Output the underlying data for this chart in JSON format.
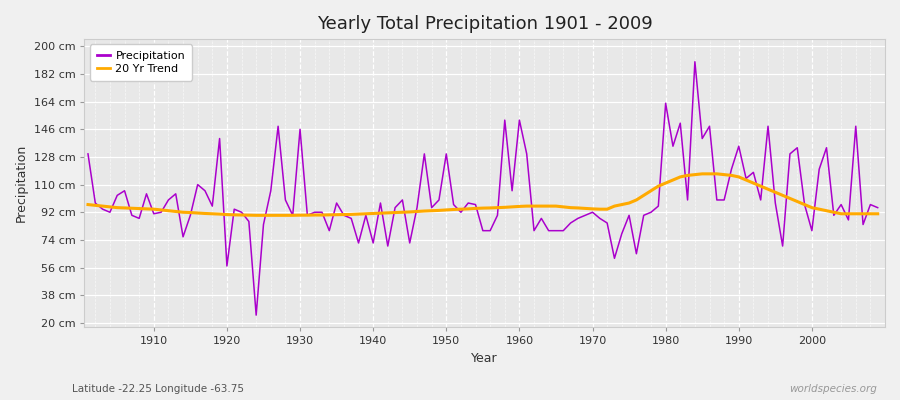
{
  "title": "Yearly Total Precipitation 1901 - 2009",
  "xlabel": "Year",
  "ylabel": "Precipitation",
  "subtitle": "Latitude -22.25 Longitude -63.75",
  "watermark": "worldspecies.org",
  "years": [
    1901,
    1902,
    1903,
    1904,
    1905,
    1906,
    1907,
    1908,
    1909,
    1910,
    1911,
    1912,
    1913,
    1914,
    1915,
    1916,
    1917,
    1918,
    1919,
    1920,
    1921,
    1922,
    1923,
    1924,
    1925,
    1926,
    1927,
    1928,
    1929,
    1930,
    1931,
    1932,
    1933,
    1934,
    1935,
    1936,
    1937,
    1938,
    1939,
    1940,
    1941,
    1942,
    1943,
    1944,
    1945,
    1946,
    1947,
    1948,
    1949,
    1950,
    1951,
    1952,
    1953,
    1954,
    1955,
    1956,
    1957,
    1958,
    1959,
    1960,
    1961,
    1962,
    1963,
    1964,
    1965,
    1966,
    1967,
    1968,
    1969,
    1970,
    1971,
    1972,
    1973,
    1974,
    1975,
    1976,
    1977,
    1978,
    1979,
    1980,
    1981,
    1982,
    1983,
    1984,
    1985,
    1986,
    1987,
    1988,
    1989,
    1990,
    1991,
    1992,
    1993,
    1994,
    1995,
    1996,
    1997,
    1998,
    1999,
    2000,
    2001,
    2002,
    2003,
    2004,
    2005,
    2006,
    2007,
    2008,
    2009
  ],
  "precipitation": [
    130,
    98,
    94,
    92,
    103,
    106,
    90,
    88,
    104,
    91,
    92,
    100,
    104,
    76,
    90,
    110,
    106,
    96,
    140,
    57,
    94,
    92,
    86,
    25,
    84,
    106,
    148,
    100,
    90,
    146,
    90,
    92,
    92,
    80,
    98,
    90,
    88,
    72,
    90,
    72,
    98,
    70,
    95,
    100,
    72,
    95,
    130,
    95,
    100,
    130,
    97,
    92,
    98,
    97,
    80,
    80,
    90,
    152,
    106,
    152,
    130,
    80,
    88,
    80,
    80,
    80,
    85,
    88,
    90,
    92,
    88,
    85,
    62,
    78,
    90,
    65,
    90,
    92,
    96,
    163,
    135,
    150,
    100,
    190,
    140,
    148,
    100,
    100,
    120,
    135,
    114,
    118,
    100,
    148,
    98,
    70,
    130,
    134,
    97,
    80,
    120,
    134,
    90,
    97,
    87,
    148,
    84,
    97,
    95
  ],
  "trend": [
    97,
    96.5,
    96,
    95.5,
    95,
    94.8,
    94.6,
    94.4,
    94.2,
    94,
    93.5,
    93,
    92.5,
    92,
    91.8,
    91.5,
    91.2,
    91,
    90.8,
    90.5,
    90.3,
    90.2,
    90.1,
    90,
    90,
    90,
    90,
    90,
    90,
    90.1,
    90.1,
    90.2,
    90.2,
    90.3,
    90.4,
    90.5,
    90.6,
    90.8,
    91,
    91.2,
    91.4,
    91.6,
    91.8,
    92,
    92.2,
    92.5,
    92.8,
    93,
    93.2,
    93.5,
    93.8,
    94,
    94.2,
    94.5,
    94.7,
    94.8,
    95,
    95.2,
    95.5,
    95.8,
    96,
    96,
    96,
    96,
    96,
    95.5,
    95,
    94.8,
    94.5,
    94.2,
    94,
    94,
    96,
    97,
    98,
    100,
    103,
    106,
    109,
    111,
    113,
    115,
    116,
    116.5,
    117,
    117,
    117,
    116.5,
    116,
    115,
    113,
    111,
    109,
    107,
    105,
    103,
    101,
    99,
    97,
    95,
    94,
    93,
    92,
    91,
    91,
    91,
    91,
    91,
    91
  ],
  "precip_color": "#aa00cc",
  "trend_color": "#ffaa00",
  "bg_color": "#f0f0f0",
  "plot_bg_color": "#e8e8e8",
  "grid_color": "#ffffff",
  "yticks": [
    20,
    38,
    56,
    74,
    92,
    110,
    128,
    146,
    164,
    182,
    200
  ],
  "ytick_labels": [
    "20 cm",
    "38 cm",
    "56 cm",
    "74 cm",
    "92 cm",
    "110 cm",
    "128 cm",
    "146 cm",
    "164 cm",
    "182 cm",
    "200 cm"
  ],
  "xticks": [
    1910,
    1920,
    1930,
    1940,
    1950,
    1960,
    1970,
    1980,
    1990,
    2000
  ],
  "ylim": [
    17,
    205
  ],
  "xlim": [
    1900.5,
    2010
  ]
}
